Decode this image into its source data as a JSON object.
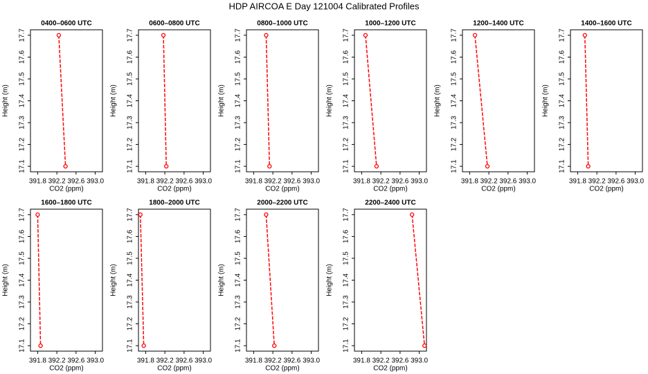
{
  "title": "HDP AIRCOA E  Day 121004  Calibrated Profiles",
  "chart_data": [
    {
      "type": "line",
      "title": "0400–0600 UTC",
      "xlabel": "CO2 (ppm)",
      "ylabel": "Height (m)",
      "x": [
        392.24,
        392.38
      ],
      "y": [
        17.7,
        17.1
      ],
      "color": "#ff0000",
      "xlim": [
        391.65,
        393.15
      ],
      "xticks": [
        391.8,
        392.2,
        392.6,
        {
          "value": 393,
          "label": "393.0"
        }
      ],
      "ylim": [
        17.075,
        17.725
      ],
      "yticks": [
        17.1,
        17.2,
        17.3,
        17.4,
        17.5,
        17.6,
        17.7
      ]
    },
    {
      "type": "line",
      "title": "0600–0800 UTC",
      "xlabel": "CO2 (ppm)",
      "ylabel": "Height (m)",
      "x": [
        392.17,
        392.23
      ],
      "y": [
        17.7,
        17.1
      ],
      "color": "#ff0000",
      "xlim": [
        391.65,
        393.15
      ],
      "xticks": [
        391.8,
        392.2,
        392.6,
        {
          "value": 393,
          "label": "393.0"
        }
      ],
      "ylim": [
        17.075,
        17.725
      ],
      "yticks": [
        17.1,
        17.2,
        17.3,
        17.4,
        17.5,
        17.6,
        17.7
      ]
    },
    {
      "type": "line",
      "title": "0800–1000 UTC",
      "xlabel": "CO2 (ppm)",
      "ylabel": "Height (m)",
      "x": [
        392.06,
        392.13
      ],
      "y": [
        17.7,
        17.1
      ],
      "color": "#ff0000",
      "xlim": [
        391.65,
        393.15
      ],
      "xticks": [
        391.8,
        392.2,
        392.6,
        {
          "value": 393,
          "label": "393.0"
        }
      ],
      "ylim": [
        17.075,
        17.725
      ],
      "yticks": [
        17.1,
        17.2,
        17.3,
        17.4,
        17.5,
        17.6,
        17.7
      ]
    },
    {
      "type": "line",
      "title": "1000–1200 UTC",
      "xlabel": "CO2 (ppm)",
      "ylabel": "Height (m)",
      "x": [
        391.88,
        392.11
      ],
      "y": [
        17.7,
        17.1
      ],
      "color": "#ff0000",
      "xlim": [
        391.65,
        393.15
      ],
      "xticks": [
        391.8,
        392.2,
        392.6,
        {
          "value": 393,
          "label": "393.0"
        }
      ],
      "ylim": [
        17.075,
        17.725
      ],
      "yticks": [
        17.1,
        17.2,
        17.3,
        17.4,
        17.5,
        17.6,
        17.7
      ]
    },
    {
      "type": "line",
      "title": "1200–1400 UTC",
      "xlabel": "CO2 (ppm)",
      "ylabel": "Height (m)",
      "x": [
        391.91,
        392.17
      ],
      "y": [
        17.7,
        17.1
      ],
      "color": "#ff0000",
      "xlim": [
        391.65,
        393.15
      ],
      "xticks": [
        391.8,
        392.2,
        392.6,
        {
          "value": 393,
          "label": "393.0"
        }
      ],
      "ylim": [
        17.075,
        17.725
      ],
      "yticks": [
        17.1,
        17.2,
        17.3,
        17.4,
        17.5,
        17.6,
        17.7
      ]
    },
    {
      "type": "line",
      "title": "1400–1600 UTC",
      "xlabel": "CO2 (ppm)",
      "ylabel": "Height (m)",
      "x": [
        391.95,
        392.02
      ],
      "y": [
        17.7,
        17.1
      ],
      "color": "#ff0000",
      "xlim": [
        391.65,
        393.15
      ],
      "xticks": [
        391.8,
        392.2,
        392.6,
        {
          "value": 393,
          "label": "393.0"
        }
      ],
      "ylim": [
        17.075,
        17.725
      ],
      "yticks": [
        17.1,
        17.2,
        17.3,
        17.4,
        17.5,
        17.6,
        17.7
      ]
    },
    {
      "type": "line",
      "title": "1600–1800 UTC",
      "xlabel": "CO2 (ppm)",
      "ylabel": "Height (m)",
      "x": [
        391.8,
        391.86
      ],
      "y": [
        17.7,
        17.1
      ],
      "color": "#ff0000",
      "xlim": [
        391.65,
        393.15
      ],
      "xticks": [
        391.8,
        392.2,
        392.6,
        {
          "value": 393,
          "label": "393.0"
        }
      ],
      "ylim": [
        17.075,
        17.725
      ],
      "yticks": [
        17.1,
        17.2,
        17.3,
        17.4,
        17.5,
        17.6,
        17.7
      ]
    },
    {
      "type": "line",
      "title": "1800–2000 UTC",
      "xlabel": "CO2 (ppm)",
      "ylabel": "Height (m)",
      "x": [
        391.69,
        391.76
      ],
      "y": [
        17.7,
        17.1
      ],
      "color": "#ff0000",
      "xlim": [
        391.65,
        393.15
      ],
      "xticks": [
        391.8,
        392.2,
        392.6,
        {
          "value": 393,
          "label": "393.0"
        }
      ],
      "ylim": [
        17.075,
        17.725
      ],
      "yticks": [
        17.1,
        17.2,
        17.3,
        17.4,
        17.5,
        17.6,
        17.7
      ]
    },
    {
      "type": "line",
      "title": "2000–2200 UTC",
      "xlabel": "CO2 (ppm)",
      "ylabel": "Height (m)",
      "x": [
        392.06,
        392.23
      ],
      "y": [
        17.7,
        17.1
      ],
      "color": "#ff0000",
      "xlim": [
        391.65,
        393.15
      ],
      "xticks": [
        391.8,
        392.2,
        392.6,
        {
          "value": 393,
          "label": "393.0"
        }
      ],
      "ylim": [
        17.075,
        17.725
      ],
      "yticks": [
        17.1,
        17.2,
        17.3,
        17.4,
        17.5,
        17.6,
        17.7
      ]
    },
    {
      "type": "line",
      "title": "2200–2400 UTC",
      "xlabel": "CO2 (ppm)",
      "ylabel": "Height (m)",
      "x": [
        392.85,
        393.11
      ],
      "y": [
        17.7,
        17.1
      ],
      "color": "#ff0000",
      "xlim": [
        391.65,
        393.15
      ],
      "xticks": [
        391.8,
        392.2,
        392.6,
        {
          "value": 393,
          "label": "393.0"
        }
      ],
      "ylim": [
        17.075,
        17.725
      ],
      "yticks": [
        17.1,
        17.2,
        17.3,
        17.4,
        17.5,
        17.6,
        17.7
      ]
    }
  ]
}
